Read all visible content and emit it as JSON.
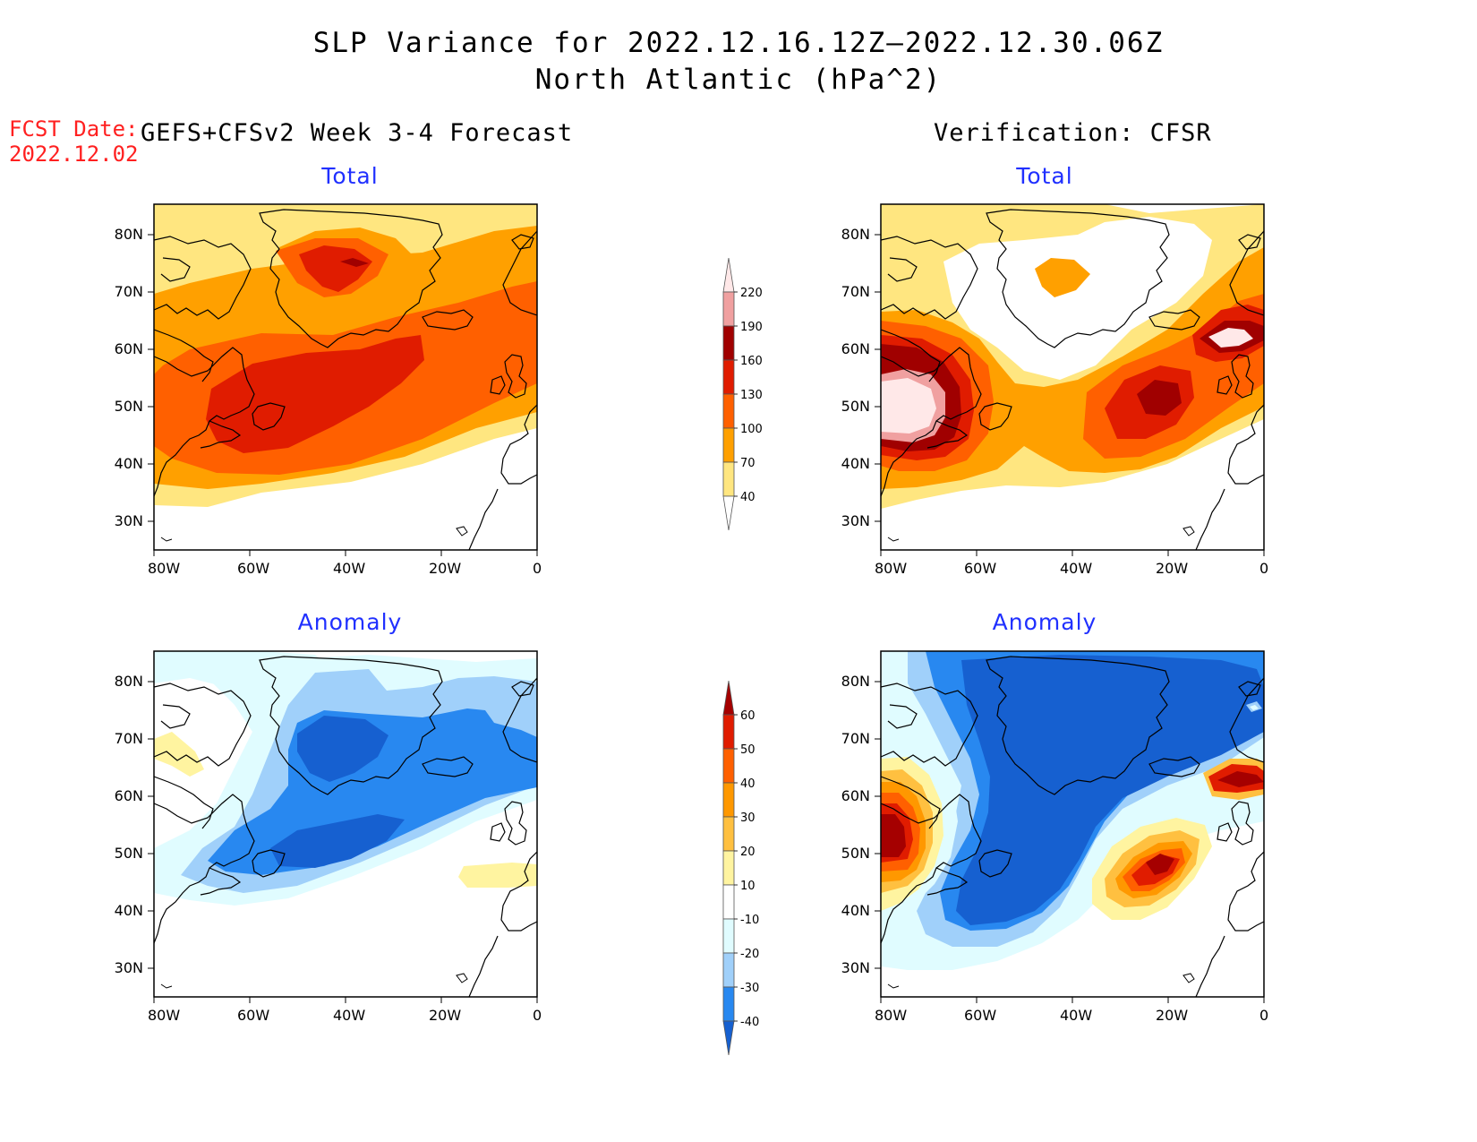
{
  "header": {
    "title_line1": "SLP Variance for 2022.12.16.12Z—2022.12.30.06Z",
    "title_line2": "North Atlantic (hPa^2)",
    "fcst_label": "FCST Date:",
    "fcst_date": "2022.12.02",
    "left_column_title": "GEFS+CFSv2 Week 3-4 Forecast",
    "right_column_title": "Verification: CFSR"
  },
  "panels": {
    "fc_total_title": "Total",
    "fc_anom_title": "Anomaly",
    "ver_total_title": "Total",
    "ver_anom_title": "Anomaly"
  },
  "axes": {
    "lon_ticks": [
      "80W",
      "60W",
      "40W",
      "20W",
      "0"
    ],
    "lat_ticks": [
      "30N",
      "40N",
      "50N",
      "60N",
      "70N",
      "80N"
    ]
  },
  "colorbars": {
    "total": {
      "levels": [
        "40",
        "70",
        "100",
        "130",
        "160",
        "190",
        "220"
      ],
      "colors": [
        "#ffe680",
        "#ffa000",
        "#ff6000",
        "#e01c00",
        "#a00000",
        "#f0a0a0",
        "#ffe8e8"
      ]
    },
    "anomaly": {
      "levels": [
        "-40",
        "-30",
        "-20",
        "-10",
        "10",
        "20",
        "30",
        "40",
        "50",
        "60"
      ],
      "colors": [
        "#1660d0",
        "#2888f0",
        "#a0d0fa",
        "#e0fcff",
        "#ffffff",
        "#fff4a0",
        "#ffc040",
        "#ff9800",
        "#ff6000",
        "#e01c00",
        "#a50000"
      ]
    }
  }
}
